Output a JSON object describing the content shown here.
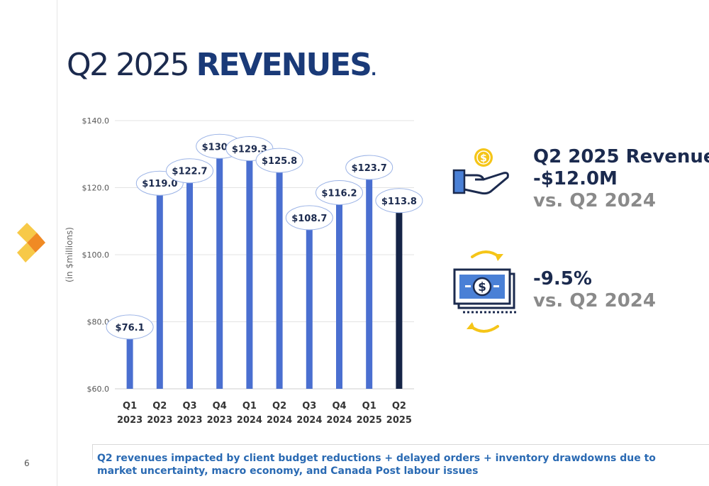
{
  "page": {
    "title_light": "Q2 2025 ",
    "title_bold": "REVENUES",
    "title_dot": ".",
    "page_number": "6"
  },
  "kpis": [
    {
      "line1": "Q2 2025 Revenue",
      "line2": "-$12.0M",
      "line3": "vs. Q2 2024",
      "icon": "hand-coin-icon"
    },
    {
      "line1": "-9.5%",
      "line2": "vs. Q2 2024",
      "icon": "dollar-bill-exchange-icon"
    }
  ],
  "footer_note": "Q2 revenues impacted by client budget reductions + delayed orders + inventory drawdowns due to market uncertainty, macro economy, and Canada Post labour issues",
  "colors": {
    "bar_blue": "#4a6fd0",
    "bar_highlight": "#152447",
    "navy": "#1b2a4e",
    "grey": "#8a8a8a",
    "footer_blue": "#2a6ab3",
    "gold": "#f5c518"
  },
  "chart_data": {
    "type": "bar",
    "categories": [
      "Q1 2023",
      "Q2 2023",
      "Q3 2023",
      "Q4 2023",
      "Q1 2024",
      "Q2 2024",
      "Q3 2024",
      "Q4 2024",
      "Q1 2025",
      "Q2 2025"
    ],
    "category_lines": [
      [
        "Q1",
        "2023"
      ],
      [
        "Q2",
        "2023"
      ],
      [
        "Q3",
        "2023"
      ],
      [
        "Q4",
        "2023"
      ],
      [
        "Q1",
        "2024"
      ],
      [
        "Q2",
        "2024"
      ],
      [
        "Q3",
        "2024"
      ],
      [
        "Q4",
        "2024"
      ],
      [
        "Q1",
        "2025"
      ],
      [
        "Q2",
        "2025"
      ]
    ],
    "values": [
      76.1,
      119.0,
      122.7,
      130.0,
      129.3,
      125.8,
      108.7,
      116.2,
      123.7,
      113.8
    ],
    "value_labels": [
      "$76.1",
      "$119.0",
      "$122.7",
      "$130.0",
      "$129.3",
      "$125.8",
      "$108.7",
      "$116.2",
      "$123.7",
      "$113.8"
    ],
    "highlight_index": 9,
    "ylabel": "(in $millions)",
    "ylim": [
      60,
      140
    ],
    "y_ticks": [
      60,
      80,
      100,
      120,
      140
    ],
    "y_tick_labels": [
      "$60.0",
      "$80.0",
      "$100.0",
      "$120.0",
      "$140.0"
    ],
    "grid": true
  }
}
